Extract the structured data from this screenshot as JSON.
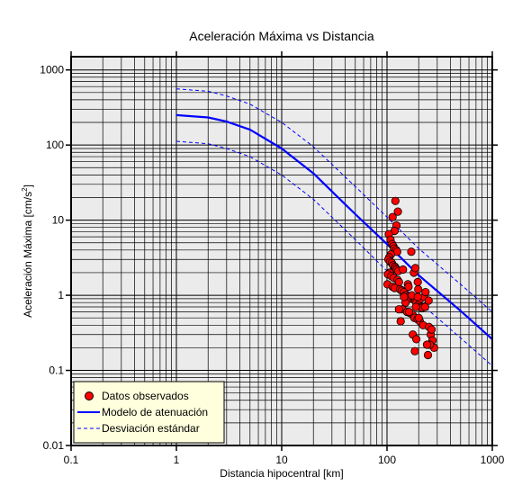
{
  "chart_data": {
    "type": "scatter",
    "title": "Aceleración Máxima vs Distancia",
    "xlabel": "Distancia hipocentral [km]",
    "ylabel": "Aceleración Máxima [cm/s",
    "ylabel_sup": "2",
    "ylabel_end": "]",
    "xscale": "log",
    "yscale": "log",
    "xlim": [
      0.1,
      1000
    ],
    "ylim": [
      0.01,
      1500
    ],
    "grid": true,
    "x_ticks": [
      {
        "value": 0.1,
        "label": "0.1"
      },
      {
        "value": 1,
        "label": "1"
      },
      {
        "value": 10,
        "label": "10"
      },
      {
        "value": 100,
        "label": "100"
      },
      {
        "value": 1000,
        "label": "1000"
      }
    ],
    "y_ticks": [
      {
        "value": 0.01,
        "label": "0.01"
      },
      {
        "value": 0.1,
        "label": "0.1"
      },
      {
        "value": 1,
        "label": "1"
      },
      {
        "value": 10,
        "label": "10"
      },
      {
        "value": 100,
        "label": "100"
      },
      {
        "value": 1000,
        "label": "1000"
      }
    ],
    "legend": {
      "placement": "bottom-left",
      "entries": [
        {
          "label": "Datos observados",
          "kind": "marker",
          "color": "#ff0000"
        },
        {
          "label": "Modelo de atenuación",
          "kind": "line",
          "color": "#0000ff"
        },
        {
          "label": "Desviación estándar",
          "kind": "dashed",
          "color": "#0000ff"
        }
      ]
    },
    "colors": {
      "plot_background": "#ebebeb",
      "legend_background": "#ffffdd",
      "marker_fill": "#ff0000",
      "marker_edge": "#000000",
      "model_line": "#0000ff"
    },
    "series": [
      {
        "name": "Modelo de atenuación",
        "style": "solid",
        "x": [
          1,
          2,
          3,
          5,
          10,
          20,
          50,
          100,
          200,
          500,
          1000
        ],
        "y": [
          250,
          233,
          205,
          160,
          90,
          42,
          12,
          4.8,
          1.85,
          0.62,
          0.26
        ]
      },
      {
        "name": "Desviación estándar",
        "style": "dashed",
        "x": [
          1,
          2,
          3,
          5,
          10,
          20,
          50,
          100,
          200,
          500,
          1000
        ],
        "y": [
          560,
          520,
          450,
          350,
          200,
          95,
          28,
          11,
          4.2,
          1.4,
          0.6
        ]
      },
      {
        "name": "Desviación estándar",
        "style": "dashed",
        "x": [
          1,
          2,
          3,
          5,
          10,
          20,
          50,
          100,
          200,
          500,
          1000
        ],
        "y": [
          112,
          104,
          90,
          70,
          40,
          19,
          5.5,
          2.1,
          0.82,
          0.27,
          0.115
        ]
      },
      {
        "name": "Datos observados",
        "style": "markers",
        "x": [
          120,
          127,
          113,
          123,
          118,
          104,
          108,
          112,
          115,
          117,
          122,
          125,
          109,
          105,
          103,
          107,
          111,
          114,
          119,
          121,
          124,
          128,
          106,
          102,
          110,
          116,
          126,
          130,
          101,
          113,
          118,
          133,
          138,
          145,
          150,
          160,
          170,
          180,
          185,
          190,
          200,
          210,
          215,
          140,
          155,
          165,
          175,
          182,
          195,
          205,
          220,
          250,
          260,
          265,
          270,
          280,
          255,
          245,
          135,
          150,
          162,
          176,
          184,
          190,
          198,
          208,
          230,
          240,
          142,
          158,
          172,
          188,
          200,
          130,
          145,
          160,
          180,
          225,
          170,
          186,
          196,
          232,
          248,
          196
        ],
        "y": [
          18,
          13,
          11,
          8.5,
          7.2,
          6.5,
          5.5,
          4.8,
          4.5,
          4.2,
          4,
          3.8,
          3.5,
          3.2,
          3,
          2.8,
          2.7,
          2.5,
          2.4,
          2.3,
          2.2,
          2.1,
          2,
          1.9,
          1.8,
          1.7,
          1.6,
          1.5,
          1.4,
          1.3,
          1.25,
          1.2,
          1.15,
          1.1,
          1,
          0.95,
          0.9,
          0.88,
          0.85,
          0.8,
          0.75,
          0.7,
          0.68,
          0.65,
          0.6,
          0.58,
          0.55,
          0.5,
          0.48,
          0.45,
          0.4,
          0.38,
          0.3,
          0.35,
          0.25,
          0.2,
          0.22,
          0.16,
          0.45,
          0.8,
          0.6,
          0.3,
          0.18,
          0.26,
          1.2,
          0.9,
          0.7,
          0.22,
          2.2,
          1.4,
          1.0,
          0.7,
          0.5,
          0.65,
          0.95,
          1.3,
          2.0,
          0.95,
          3.8,
          2.3,
          1.5,
          1.1,
          0.85,
          0.95
        ]
      }
    ]
  }
}
